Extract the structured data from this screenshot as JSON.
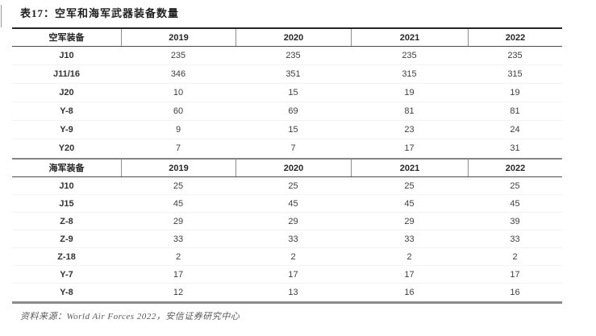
{
  "title": "表17：空军和海军武器装备数量",
  "footer": {
    "source": "资料来源：World Air Forces 2022，安信证券研究中心"
  },
  "colors": {
    "title_text": "#1f1f1f",
    "title_rule": "#262626",
    "header_rule": "#4d4d4d",
    "section_rule": "#858585",
    "bottom_rule": "#8c8c8c",
    "data_text": "#404040",
    "footer_text": "#595959"
  },
  "table": {
    "sections": [
      {
        "header": {
          "label": "空军装备",
          "years": [
            "2019",
            "2020",
            "2021",
            "2022"
          ]
        },
        "rows": [
          {
            "name": "J10",
            "values": [
              "235",
              "235",
              "235",
              "235"
            ]
          },
          {
            "name": "J11/16",
            "values": [
              "346",
              "351",
              "315",
              "315"
            ]
          },
          {
            "name": "J20",
            "values": [
              "10",
              "15",
              "19",
              "19"
            ]
          },
          {
            "name": "Y-8",
            "values": [
              "60",
              "69",
              "81",
              "81"
            ]
          },
          {
            "name": "Y-9",
            "values": [
              "9",
              "15",
              "23",
              "24"
            ]
          },
          {
            "name": "Y20",
            "values": [
              "7",
              "7",
              "17",
              "31"
            ]
          }
        ]
      },
      {
        "header": {
          "label": "海军装备",
          "years": [
            "2019",
            "2020",
            "2021",
            "2022"
          ]
        },
        "rows": [
          {
            "name": "J10",
            "values": [
              "25",
              "25",
              "25",
              "25"
            ]
          },
          {
            "name": "J15",
            "values": [
              "45",
              "45",
              "45",
              "45"
            ]
          },
          {
            "name": "Z-8",
            "values": [
              "29",
              "29",
              "29",
              "39"
            ]
          },
          {
            "name": "Z-9",
            "values": [
              "33",
              "33",
              "33",
              "33"
            ]
          },
          {
            "name": "Z-18",
            "values": [
              "2",
              "2",
              "2",
              "2"
            ]
          },
          {
            "name": "Y-7",
            "values": [
              "17",
              "17",
              "17",
              "17"
            ]
          },
          {
            "name": "Y-8",
            "values": [
              "12",
              "13",
              "16",
              "16"
            ]
          }
        ]
      }
    ]
  }
}
